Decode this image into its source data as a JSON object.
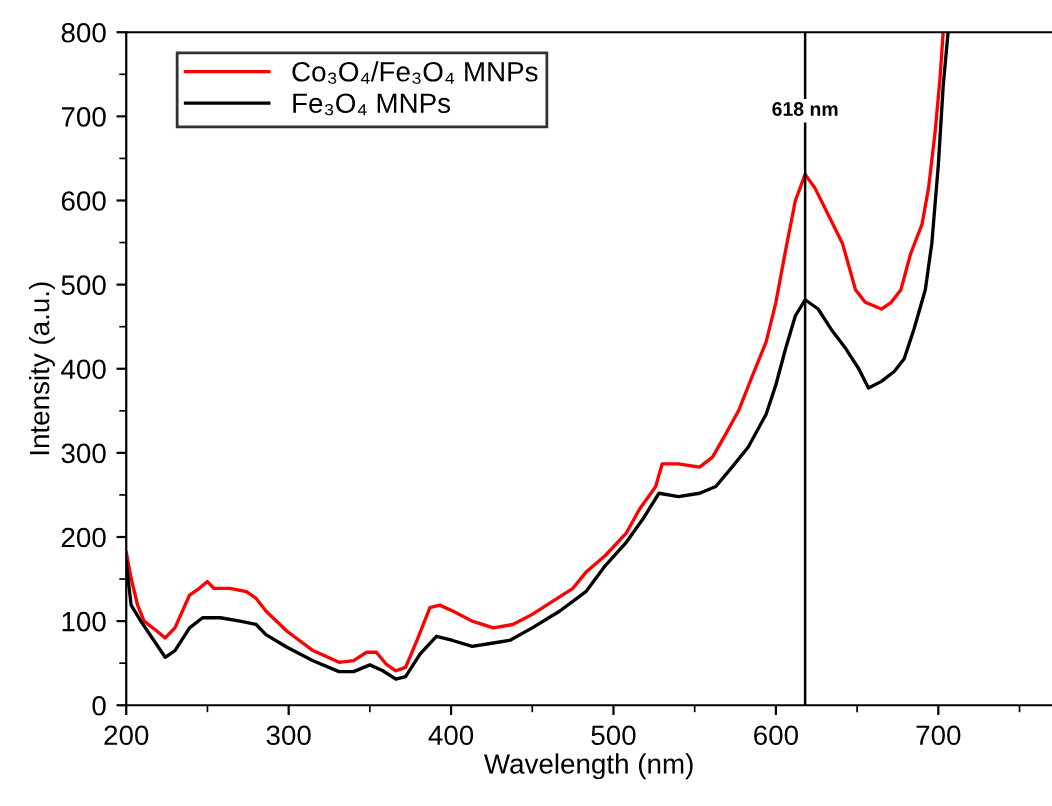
{
  "chart_data": {
    "type": "line",
    "xlabel": "Wavelength (nm)",
    "ylabel": "Intensity (a.u.)",
    "xlim": [
      200,
      770
    ],
    "xticks": [
      200,
      300,
      400,
      500,
      600,
      700
    ],
    "ylim": [
      0,
      800
    ],
    "yticks": [
      0,
      100,
      200,
      300,
      400,
      500,
      600,
      700,
      800
    ],
    "grid": false,
    "legend": "top left",
    "ref_lines": [
      {
        "axis": "x",
        "value": 618,
        "label": "618 nm",
        "color": "#000000"
      }
    ],
    "series": [
      {
        "name": "Co₃O₄/Fe₃O₄ MNPs",
        "color": "#ff0000",
        "x": [
          200,
          203,
          207,
          211,
          219,
          224,
          230,
          239,
          245,
          250,
          254,
          264,
          274,
          280,
          286,
          299,
          315,
          331,
          340,
          348,
          354,
          360,
          366,
          372,
          379,
          387,
          393,
          401,
          413,
          426,
          438,
          450,
          462,
          475,
          483,
          495,
          508,
          516,
          526,
          530,
          540,
          553,
          561,
          569,
          577,
          585,
          594,
          600,
          606,
          612,
          618,
          624,
          633,
          641,
          649,
          655,
          665,
          671,
          677,
          683,
          690,
          694,
          698,
          701,
          703
        ],
        "values": [
          182,
          151,
          119,
          100,
          88,
          80,
          92,
          131,
          139,
          147,
          139,
          139,
          135,
          127,
          112,
          88,
          65,
          51,
          53,
          63,
          63,
          49,
          41,
          45,
          77,
          116,
          119,
          112,
          100,
          92,
          96,
          108,
          123,
          139,
          158,
          178,
          205,
          233,
          260,
          287,
          287,
          283,
          295,
          322,
          350,
          389,
          432,
          479,
          541,
          600,
          631,
          615,
          580,
          549,
          494,
          479,
          471,
          479,
          494,
          537,
          572,
          615,
          681,
          744,
          800
        ]
      },
      {
        "name": "Fe₃O₄ MNPs",
        "color": "#000000",
        "x": [
          200,
          203,
          209,
          217,
          224,
          230,
          239,
          247,
          258,
          270,
          280,
          286,
          299,
          315,
          331,
          340,
          350,
          358,
          366,
          372,
          381,
          391,
          401,
          413,
          426,
          436,
          450,
          467,
          483,
          495,
          508,
          518,
          528,
          540,
          553,
          563,
          573,
          583,
          594,
          600,
          606,
          612,
          618,
          626,
          634,
          643,
          651,
          657,
          665,
          673,
          679,
          685,
          692,
          696,
          700,
          703,
          706
        ],
        "values": [
          170,
          119,
          100,
          77,
          57,
          65,
          92,
          104,
          104,
          100,
          96,
          84,
          69,
          53,
          40,
          40,
          48,
          41,
          31,
          34,
          61,
          82,
          77,
          70,
          74,
          77,
          92,
          112,
          135,
          166,
          194,
          221,
          252,
          248,
          252,
          260,
          283,
          307,
          346,
          381,
          424,
          463,
          482,
          471,
          447,
          424,
          400,
          377,
          385,
          397,
          412,
          447,
          494,
          549,
          642,
          736,
          800
        ]
      }
    ]
  }
}
